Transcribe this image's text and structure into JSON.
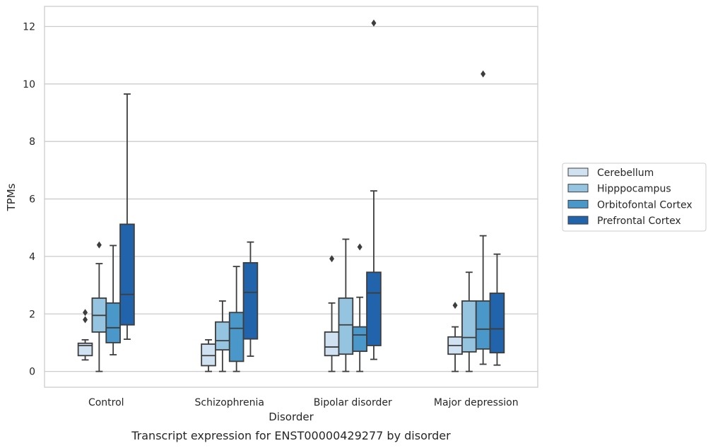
{
  "chart_data": {
    "type": "box",
    "title": "",
    "caption": "Transcript expression for ENST00000429277 by disorder",
    "xlabel": "Disorder",
    "ylabel": "TPMs",
    "ylim": [
      -0.55,
      12.7
    ],
    "yticks": [
      0,
      2,
      4,
      6,
      8,
      10,
      12
    ],
    "grid": "horizontal",
    "legend_position": "right",
    "categories": [
      "Control",
      "Schizophrenia",
      "Bipolar disorder",
      "Major depression"
    ],
    "series": [
      {
        "name": "Cerebellum",
        "color": "#d0e1f2",
        "boxes": [
          {
            "whislo": 0.4,
            "q1": 0.55,
            "med": 0.9,
            "q3": 0.98,
            "whishi": 1.1,
            "fliers": [
              1.8,
              2.05
            ]
          },
          {
            "whislo": 0.0,
            "q1": 0.2,
            "med": 0.55,
            "q3": 0.95,
            "whishi": 1.1,
            "fliers": []
          },
          {
            "whislo": 0.0,
            "q1": 0.55,
            "med": 0.85,
            "q3": 1.37,
            "whishi": 2.38,
            "fliers": [
              3.92
            ]
          },
          {
            "whislo": 0.0,
            "q1": 0.6,
            "med": 0.9,
            "q3": 1.2,
            "whishi": 1.55,
            "fliers": [
              2.3
            ]
          }
        ]
      },
      {
        "name": "Hipppocampus",
        "color": "#94c4df",
        "boxes": [
          {
            "whislo": 0.0,
            "q1": 1.37,
            "med": 1.95,
            "q3": 2.55,
            "whishi": 3.75,
            "fliers": [
              4.4
            ]
          },
          {
            "whislo": 0.0,
            "q1": 0.75,
            "med": 1.07,
            "q3": 1.72,
            "whishi": 2.45,
            "fliers": []
          },
          {
            "whislo": 0.0,
            "q1": 0.6,
            "med": 1.62,
            "q3": 2.55,
            "whishi": 4.6,
            "fliers": []
          },
          {
            "whislo": 0.0,
            "q1": 0.68,
            "med": 1.18,
            "q3": 2.45,
            "whishi": 3.45,
            "fliers": []
          }
        ]
      },
      {
        "name": "Orbitofontal Cortex",
        "color": "#4a98c9",
        "boxes": [
          {
            "whislo": 0.58,
            "q1": 1.0,
            "med": 1.52,
            "q3": 2.38,
            "whishi": 4.38,
            "fliers": []
          },
          {
            "whislo": 0.0,
            "q1": 0.35,
            "med": 1.5,
            "q3": 2.05,
            "whishi": 3.65,
            "fliers": []
          },
          {
            "whislo": 0.0,
            "q1": 0.7,
            "med": 1.27,
            "q3": 1.55,
            "whishi": 2.58,
            "fliers": [
              4.33
            ]
          },
          {
            "whislo": 0.25,
            "q1": 0.78,
            "med": 1.47,
            "q3": 2.45,
            "whishi": 4.72,
            "fliers": [
              10.35
            ]
          }
        ]
      },
      {
        "name": "Prefrontal Cortex",
        "color": "#2164ab",
        "boxes": [
          {
            "whislo": 1.12,
            "q1": 1.62,
            "med": 2.68,
            "q3": 5.12,
            "whishi": 9.65,
            "fliers": []
          },
          {
            "whislo": 0.53,
            "q1": 1.13,
            "med": 2.75,
            "q3": 3.78,
            "whishi": 4.5,
            "fliers": []
          },
          {
            "whislo": 0.42,
            "q1": 0.9,
            "med": 2.73,
            "q3": 3.45,
            "whishi": 6.28,
            "fliers": [
              12.12
            ]
          },
          {
            "whislo": 0.22,
            "q1": 0.65,
            "med": 1.48,
            "q3": 2.72,
            "whishi": 4.08,
            "fliers": []
          }
        ]
      }
    ]
  },
  "colors": {
    "line": "#3d3d3d",
    "grid": "#cccccc",
    "frame": "#cccccc"
  }
}
